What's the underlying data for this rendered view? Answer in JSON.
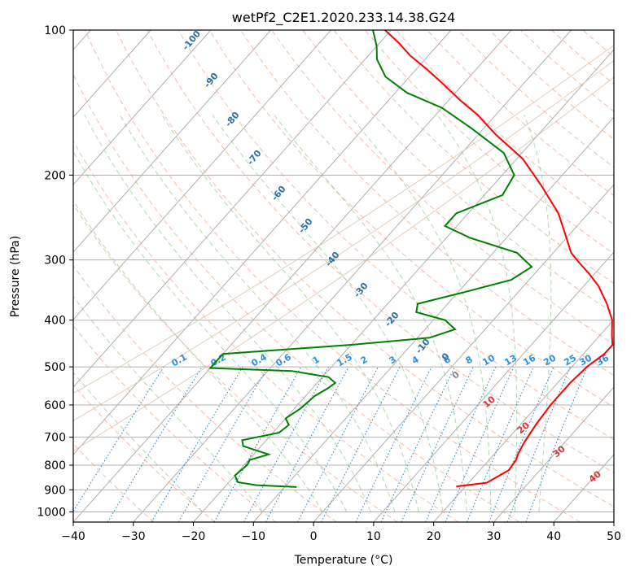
{
  "chart_data": {
    "type": "skew-t log-p",
    "title": "wetPf2_C2E1.2020.233.14.38.G24",
    "xlabel": "Temperature (°C)",
    "ylabel": "Pressure (hPa)",
    "xlim": [
      -40,
      50
    ],
    "ylim": [
      1050,
      100
    ],
    "y_scale": "log",
    "grid": true,
    "x_ticks": [
      "−40",
      "−30",
      "−20",
      "−10",
      "0",
      "10",
      "20",
      "30",
      "40",
      "50"
    ],
    "y_ticks": [
      "100",
      "200",
      "300",
      "400",
      "500",
      "600",
      "700",
      "800",
      "900",
      "1000"
    ],
    "series": [
      {
        "color": "#ff0000",
        "line": "temperature profile",
        "points": [
          [
            886,
            18.5
          ],
          [
            870,
            23.0
          ],
          [
            820,
            24.8
          ],
          [
            780,
            24.5
          ],
          [
            760,
            24.0
          ],
          [
            720,
            23.3
          ],
          [
            660,
            22.6
          ],
          [
            600,
            22.1
          ],
          [
            540,
            22.1
          ],
          [
            500,
            22.5
          ],
          [
            470,
            23.5
          ],
          [
            450,
            23.5
          ],
          [
            430,
            22.0
          ],
          [
            400,
            19.8
          ],
          [
            370,
            16.5
          ],
          [
            340,
            12.5
          ],
          [
            320,
            9.0
          ],
          [
            305,
            6.0
          ],
          [
            290,
            3.0
          ],
          [
            270,
            0.0
          ],
          [
            240,
            -5.0
          ],
          [
            210,
            -12.0
          ],
          [
            185,
            -19.0
          ],
          [
            165,
            -27.0
          ],
          [
            150,
            -33.0
          ],
          [
            140,
            -38.0
          ],
          [
            130,
            -43.0
          ],
          [
            121,
            -48.0
          ],
          [
            113,
            -53.0
          ],
          [
            106,
            -57.0
          ],
          [
            100,
            -61.0
          ]
        ]
      },
      {
        "color": "#008000",
        "line": "dewpoint profile",
        "points": [
          [
            888,
            -8.0
          ],
          [
            880,
            -15.0
          ],
          [
            868,
            -18.5
          ],
          [
            840,
            -20.0
          ],
          [
            800,
            -19.5
          ],
          [
            780,
            -19.8
          ],
          [
            760,
            -17.5
          ],
          [
            730,
            -23.0
          ],
          [
            710,
            -24.0
          ],
          [
            685,
            -19.0
          ],
          [
            660,
            -18.5
          ],
          [
            640,
            -20.0
          ],
          [
            610,
            -19.0
          ],
          [
            575,
            -18.5
          ],
          [
            555,
            -17.5
          ],
          [
            540,
            -17.0
          ],
          [
            525,
            -19.0
          ],
          [
            510,
            -26.0
          ],
          [
            503,
            -40.0
          ],
          [
            470,
            -40.0
          ],
          [
            450,
            -20.0
          ],
          [
            435,
            -8.0
          ],
          [
            418,
            -5.0
          ],
          [
            400,
            -8.0
          ],
          [
            385,
            -14.0
          ],
          [
            370,
            -15.0
          ],
          [
            350,
            -9.0
          ],
          [
            330,
            -3.0
          ],
          [
            310,
            -1.5
          ],
          [
            290,
            -6.0
          ],
          [
            270,
            -16.0
          ],
          [
            255,
            -22.0
          ],
          [
            240,
            -22.0
          ],
          [
            220,
            -17.0
          ],
          [
            200,
            -18.0
          ],
          [
            180,
            -23.0
          ],
          [
            160,
            -32.0
          ],
          [
            145,
            -40.0
          ],
          [
            135,
            -48.0
          ],
          [
            125,
            -54.0
          ],
          [
            115,
            -58.0
          ],
          [
            108,
            -60.0
          ],
          [
            100,
            -63.0
          ]
        ]
      }
    ],
    "mixing_ratio_labels": [
      "0.1",
      "0.2",
      "0.4",
      "0.6",
      "1",
      "1.5",
      "2",
      "3",
      "4",
      "6",
      "8",
      "10",
      "13",
      "16",
      "20",
      "25",
      "30",
      "36"
    ],
    "dry_adiabat_labels": [
      "-100",
      "-90",
      "-80",
      "-70",
      "-60",
      "-50",
      "-40",
      "-30",
      "-20",
      "-10",
      "0"
    ],
    "moist_adiabat_labels": [
      "0",
      "10",
      "20",
      "30",
      "40"
    ]
  }
}
